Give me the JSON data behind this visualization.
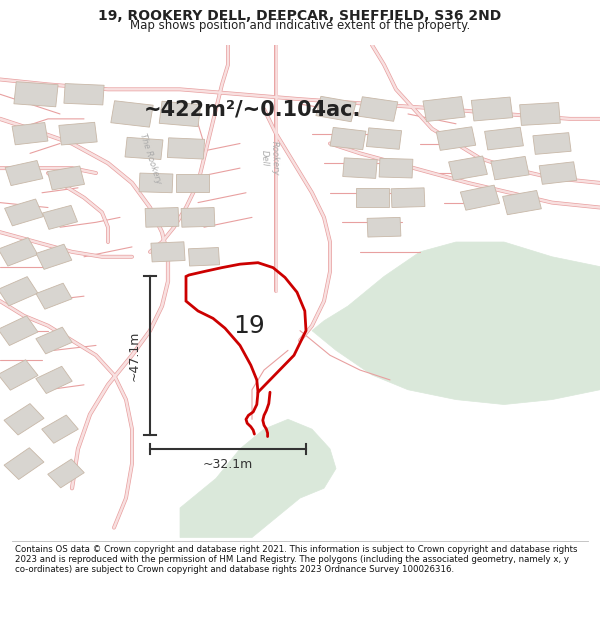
{
  "title": "19, ROOKERY DELL, DEEPCAR, SHEFFIELD, S36 2ND",
  "subtitle": "Map shows position and indicative extent of the property.",
  "footer": "Contains OS data © Crown copyright and database right 2021. This information is subject to Crown copyright and database rights 2023 and is reproduced with the permission of HM Land Registry. The polygons (including the associated geometry, namely x, y co-ordinates) are subject to Crown copyright and database rights 2023 Ordnance Survey 100026316.",
  "area_label": "~422m²/~0.104ac.",
  "width_label": "~32.1m",
  "height_label": "~47.1m",
  "plot_number": "19",
  "map_bg": "#f2f0ee",
  "green_color": "#dae8da",
  "road_color": "#f0b8b8",
  "road_edge_color": "#e08888",
  "building_fill": "#d8d5d0",
  "building_edge": "#c8b8a8",
  "plot_color": "#cc0000",
  "dim_color": "#333333",
  "label_color": "#999999",
  "title_color": "#222222"
}
